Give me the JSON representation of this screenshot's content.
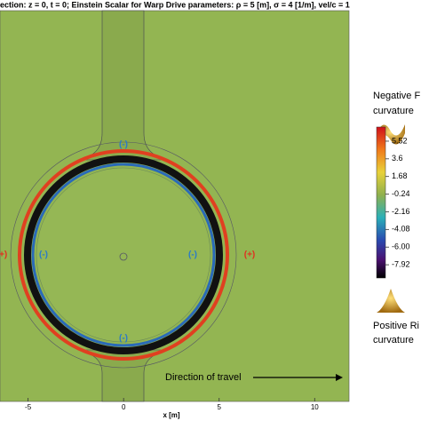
{
  "chart_data": {
    "type": "contour",
    "title": "ection:  z = 0, t = 0; Einstein Scalar for Warp Drive parameters: ρ = 5 [m], σ = 4 [1/m], vel/c = 1",
    "x_label": "x [m]",
    "xlim": [
      -6.47,
      11.8
    ],
    "xticks": [
      -5,
      0,
      5,
      10
    ],
    "annotations": [
      "(-)",
      "(-)",
      "(-)",
      "(-)",
      "(+)",
      "(+)",
      "Direction of travel"
    ],
    "colorbar": {
      "lim": [
        -9.36,
        7.06
      ],
      "ticks": [
        5.52,
        3.6,
        1.68,
        -0.24,
        -2.16,
        -4.08,
        {
          "value": -6,
          "label": "-6.00"
        },
        -7.92
      ]
    },
    "legend_top": [
      "Negative F",
      "curvature"
    ],
    "legend_bottom": [
      "Positive Ri",
      "curvature"
    ]
  }
}
